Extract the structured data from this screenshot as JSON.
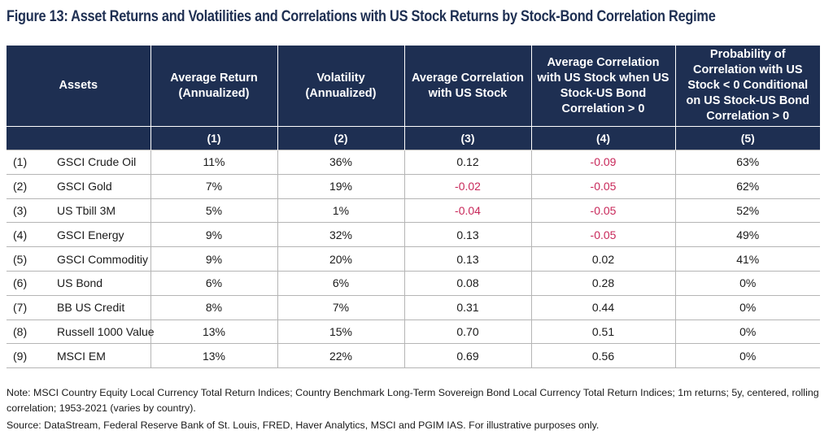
{
  "title": "Figure 13: Asset Returns and Volatilities and Correlations with US Stock Returns by Stock-Bond Correlation Regime",
  "columns": {
    "assets": "Assets",
    "c1": "Average Return (Annualized)",
    "c2": "Volatility (Annualized)",
    "c3": "Average Correlation with US Stock",
    "c4": "Average Correlation with US Stock when US Stock-US Bond Correlation > 0",
    "c5": "Probability of Correlation with US Stock < 0 Conditional on US Stock-US Bond Correlation > 0"
  },
  "column_numbers": [
    "(1)",
    "(2)",
    "(3)",
    "(4)",
    "(5)"
  ],
  "negative_color": "#c8285a",
  "header_color": "#1e2f52",
  "rows": [
    {
      "idx": "(1)",
      "asset": "GSCI Crude Oil",
      "c1": "11%",
      "c2": "36%",
      "c3": "0.12",
      "c4": "-0.09",
      "c5": "63%"
    },
    {
      "idx": "(2)",
      "asset": "GSCI Gold",
      "c1": "7%",
      "c2": "19%",
      "c3": "-0.02",
      "c4": "-0.05",
      "c5": "62%"
    },
    {
      "idx": "(3)",
      "asset": "US Tbill 3M",
      "c1": "5%",
      "c2": "1%",
      "c3": "-0.04",
      "c4": "-0.05",
      "c5": "52%"
    },
    {
      "idx": "(4)",
      "asset": "GSCI Energy",
      "c1": "9%",
      "c2": "32%",
      "c3": "0.13",
      "c4": "-0.05",
      "c5": "49%"
    },
    {
      "idx": "(5)",
      "asset": "GSCI Commoditiy",
      "c1": "9%",
      "c2": "20%",
      "c3": "0.13",
      "c4": "0.02",
      "c5": "41%"
    },
    {
      "idx": "(6)",
      "asset": "US Bond",
      "c1": "6%",
      "c2": "6%",
      "c3": "0.08",
      "c4": "0.28",
      "c5": "0%"
    },
    {
      "idx": "(7)",
      "asset": "BB US Credit",
      "c1": "8%",
      "c2": "7%",
      "c3": "0.31",
      "c4": "0.44",
      "c5": "0%"
    },
    {
      "idx": "(8)",
      "asset": "Russell 1000 Value",
      "c1": "13%",
      "c2": "15%",
      "c3": "0.70",
      "c4": "0.51",
      "c5": "0%"
    },
    {
      "idx": "(9)",
      "asset": "MSCI EM",
      "c1": "13%",
      "c2": "22%",
      "c3": "0.69",
      "c4": "0.56",
      "c5": "0%"
    }
  ],
  "note": "Note: MSCI Country Equity Local Currency Total Return Indices; Country Benchmark Long-Term Sovereign Bond Local Currency Total Return Indices; 1m returns; 5y, centered, rolling correlation; 1953-2021 (varies by country).",
  "source": "Source: DataStream, Federal Reserve Bank of St. Louis, FRED, Haver Analytics, MSCI and PGIM IAS. For illustrative purposes only."
}
